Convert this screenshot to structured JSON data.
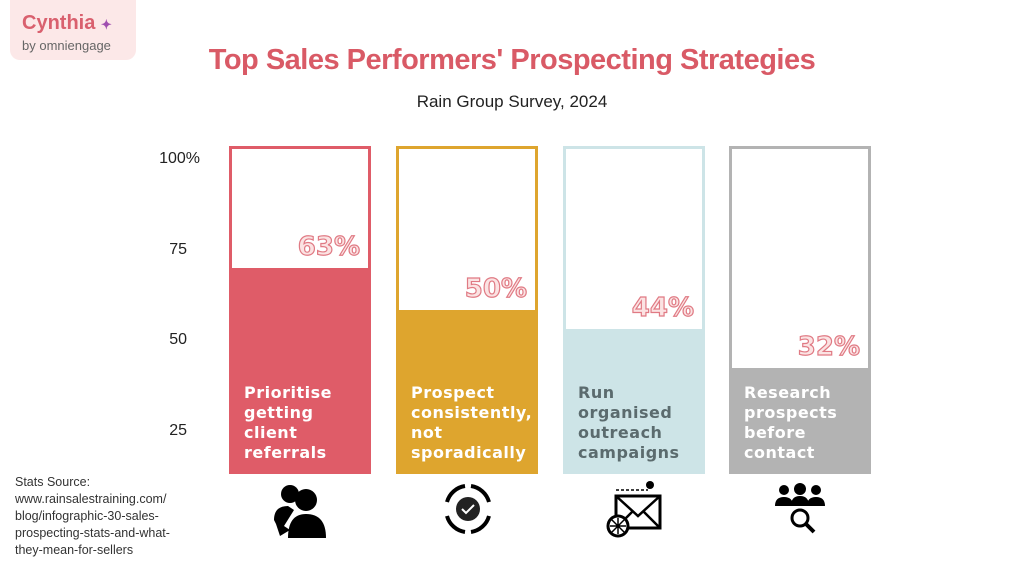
{
  "logo": {
    "name": "Cynthia",
    "by": "by omniengage"
  },
  "chart_data": {
    "type": "bar",
    "title": "Top Sales Performers' Prospecting Strategies",
    "subtitle": "Rain Group Survey, 2024",
    "ylim": [
      0,
      100
    ],
    "yticks": [
      "100%",
      "75",
      "50",
      "25"
    ],
    "categories": [
      "Prioritise getting client referrals",
      "Prospect consistently, not sporadically",
      "Run organised outreach campaigns",
      "Research prospects before contact"
    ],
    "values": [
      63,
      50,
      44,
      32
    ],
    "value_labels": [
      "63%",
      "50%",
      "44%",
      "32%"
    ],
    "colors": [
      "#df5c68",
      "#dea52e",
      "#cde4e7",
      "#b3b3b3"
    ],
    "label_colors": [
      "#ffffff",
      "#ffffff",
      "#5b6b6e",
      "#ffffff"
    ],
    "icons": [
      "referral-people-icon",
      "cycle-check-icon",
      "email-campaign-icon",
      "people-search-icon"
    ]
  },
  "source": "Stats Source:\nwww.rainsalestraining.com/\nblog/infographic-30-sales-\nprospecting-stats-and-what-\nthey-mean-for-sellers"
}
